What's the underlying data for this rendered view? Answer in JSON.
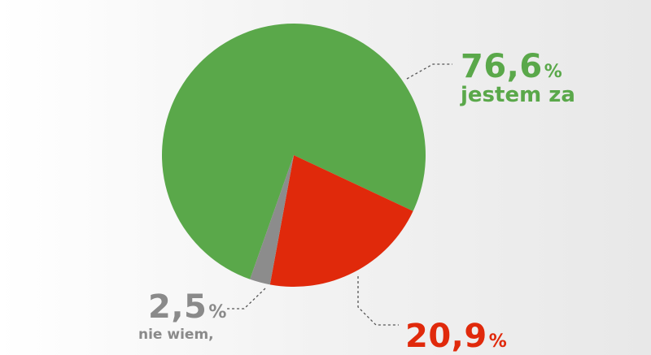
{
  "chart_data": {
    "type": "pie",
    "slices": [
      {
        "value": 76.6,
        "value_label": "76,6",
        "unit": "%",
        "category": "jestem za",
        "color": "#5aa84a"
      },
      {
        "value": 20.9,
        "value_label": "20,9",
        "unit": "%",
        "category": "",
        "color": "#e0290b"
      },
      {
        "value": 2.5,
        "value_label": "2,5",
        "unit": "%",
        "category": "nie wiem,",
        "color": "#8c8c8c"
      }
    ],
    "title": "",
    "legend": "none"
  }
}
